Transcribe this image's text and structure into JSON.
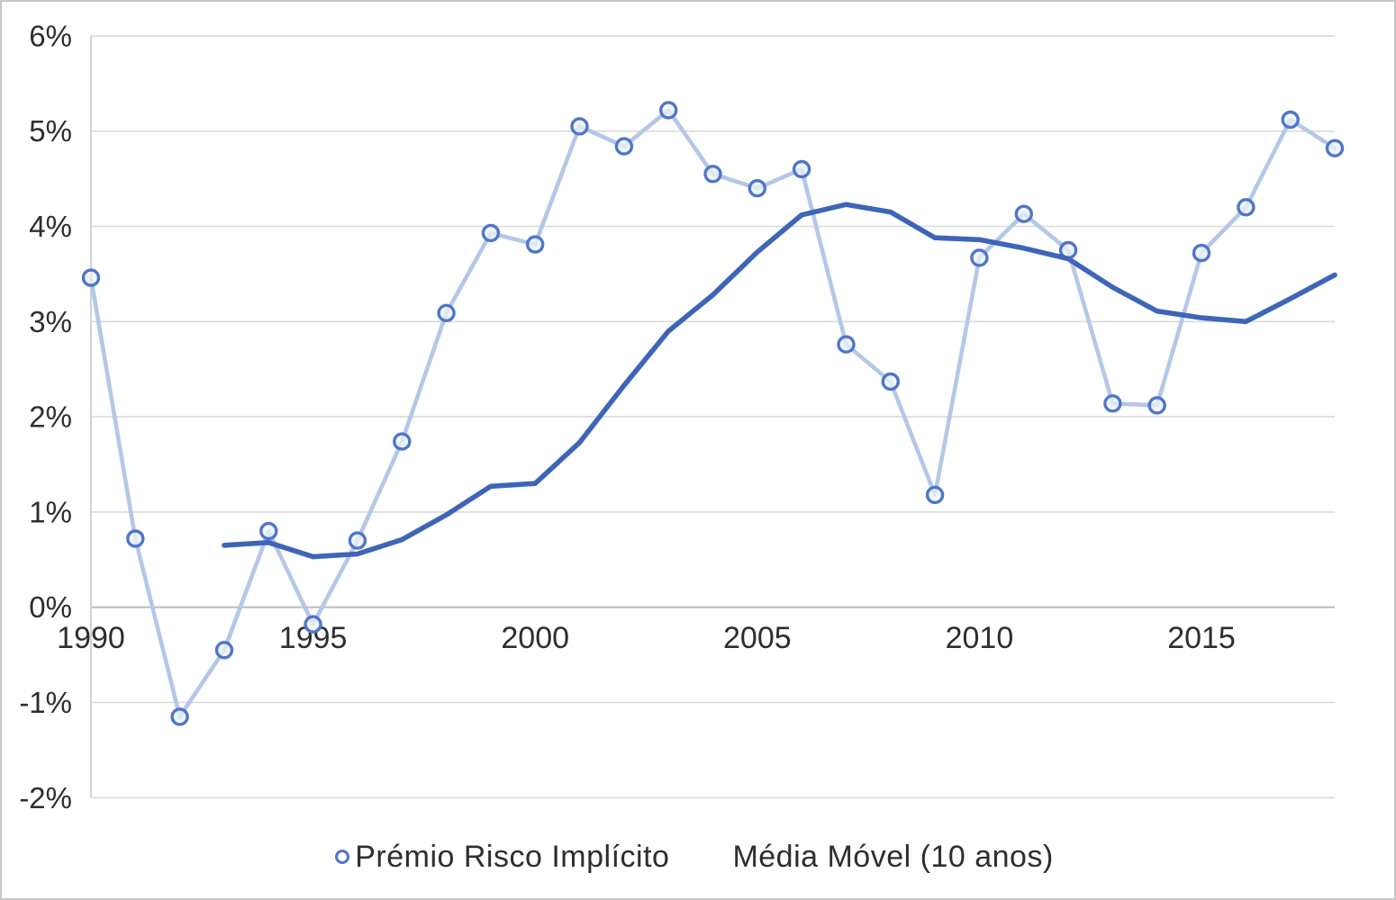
{
  "chart_data": {
    "type": "line",
    "title": "",
    "xlabel": "",
    "ylabel": "",
    "x": [
      1990,
      1991,
      1992,
      1993,
      1994,
      1995,
      1996,
      1997,
      1998,
      1999,
      2000,
      2001,
      2002,
      2003,
      2004,
      2005,
      2006,
      2007,
      2008,
      2009,
      2010,
      2011,
      2012,
      2013,
      2014,
      2015,
      2016,
      2017,
      2018
    ],
    "series": [
      {
        "name": "Prémio Risco Implícito",
        "type": "line-with-markers",
        "color": "#b4c7e7",
        "marker": "circle",
        "marker_stroke": "#4f76ca",
        "marker_fill": "rgba(236,242,251,0.75)",
        "values_pct": [
          3.46,
          0.72,
          -1.15,
          -0.45,
          0.8,
          -0.18,
          0.7,
          1.74,
          3.09,
          3.93,
          3.81,
          5.05,
          4.84,
          5.22,
          4.55,
          4.4,
          4.6,
          2.76,
          2.37,
          1.18,
          3.67,
          4.13,
          3.75,
          2.14,
          2.12,
          3.72,
          4.2,
          5.12,
          4.82
        ]
      },
      {
        "name": "Média Móvel (10 anos)",
        "type": "line",
        "color": "#3d65b8",
        "marker": "none",
        "values_pct": [
          null,
          null,
          null,
          0.65,
          0.68,
          0.53,
          0.56,
          0.71,
          0.97,
          1.27,
          1.3,
          1.73,
          2.33,
          2.9,
          3.28,
          3.73,
          4.12,
          4.23,
          4.15,
          3.88,
          3.86,
          3.77,
          3.66,
          3.36,
          3.11,
          3.04,
          3.0,
          3.24,
          3.49
        ]
      }
    ],
    "ylim_pct": [
      -2,
      6
    ],
    "yticks": [
      {
        "value": 6,
        "label": "6%"
      },
      {
        "value": 5,
        "label": "5%"
      },
      {
        "value": 4,
        "label": "4%"
      },
      {
        "value": 3,
        "label": "3%"
      },
      {
        "value": 2,
        "label": "2%"
      },
      {
        "value": 1,
        "label": "1%"
      },
      {
        "value": 0,
        "label": "0%"
      },
      {
        "value": -1,
        "label": "-1%"
      },
      {
        "value": -2,
        "label": "-2%"
      }
    ],
    "xticks": [
      {
        "value": 1990,
        "label": "1990"
      },
      {
        "value": 1995,
        "label": "1995"
      },
      {
        "value": 2000,
        "label": "2000"
      },
      {
        "value": 2005,
        "label": "2005"
      },
      {
        "value": 2010,
        "label": "2010"
      },
      {
        "value": 2015,
        "label": "2015"
      }
    ],
    "grid": true,
    "legend_position": "bottom"
  },
  "colors": {
    "grid_line": "#d9d9d9",
    "zero_axis_line": "#bfbfbf",
    "y_axis_line": "#d2d2d2",
    "tick_text": "#2e2e2e",
    "figure_border": "#c7c7c7",
    "background": "#ffffff"
  },
  "legend": {
    "items": [
      {
        "label": "Prémio Risco Implícito"
      },
      {
        "label": "Média Móvel (10 anos)"
      }
    ]
  }
}
